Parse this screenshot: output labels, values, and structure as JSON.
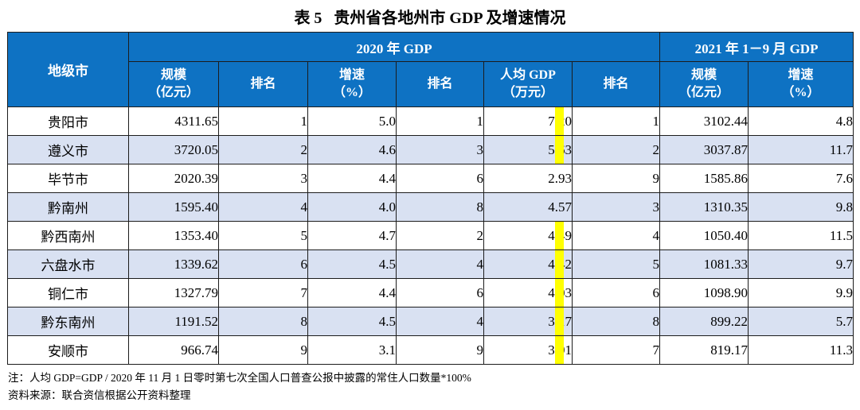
{
  "title": "表 5   贵州省各地州市 GDP 及增速情况",
  "colors": {
    "header_blue": "#0E72C3",
    "alt_row_blue": "#D9E1F2",
    "highlight_yellow": "#FFFF00",
    "border": "#1C1C1C"
  },
  "table": {
    "corner_header": "地级市",
    "groups": [
      {
        "label": "2020 年 GDP",
        "colspan": 6
      },
      {
        "label": "2021 年 1－9 月 GDP",
        "colspan": 2
      }
    ],
    "sub_headers": [
      "规模\n（亿元）",
      "排名",
      "增速\n（%）",
      "排名",
      "人均 GDP\n（万元）",
      "排名",
      "规模\n（亿元）",
      "增速\n（%）"
    ],
    "rows": [
      {
        "city": "贵阳市",
        "gdp_2020": "4311.65",
        "gdp_2020_rank": "1",
        "growth_2020": "5.0",
        "growth_2020_rank": "1",
        "per_capita_gdp": "7.20",
        "per_capita_highlight": true,
        "per_capita_rank": "1",
        "gdp_2021": "3102.44",
        "growth_2021": "4.8",
        "shaded": false
      },
      {
        "city": "遵义市",
        "gdp_2020": "3720.05",
        "gdp_2020_rank": "2",
        "growth_2020": "4.6",
        "growth_2020_rank": "3",
        "per_capita_gdp": "5.63",
        "per_capita_highlight": true,
        "per_capita_rank": "2",
        "gdp_2021": "3037.87",
        "growth_2021": "11.7",
        "shaded": true
      },
      {
        "city": "毕节市",
        "gdp_2020": "2020.39",
        "gdp_2020_rank": "3",
        "growth_2020": "4.4",
        "growth_2020_rank": "6",
        "per_capita_gdp": "2.93",
        "per_capita_highlight": false,
        "per_capita_rank": "9",
        "gdp_2021": "1585.86",
        "growth_2021": "7.6",
        "shaded": false
      },
      {
        "city": "黔南州",
        "gdp_2020": "1595.40",
        "gdp_2020_rank": "4",
        "growth_2020": "4.0",
        "growth_2020_rank": "8",
        "per_capita_gdp": "4.57",
        "per_capita_highlight": false,
        "per_capita_rank": "3",
        "gdp_2021": "1310.35",
        "growth_2021": "9.8",
        "shaded": true
      },
      {
        "city": "黔西南州",
        "gdp_2020": "1353.40",
        "gdp_2020_rank": "5",
        "growth_2020": "4.7",
        "growth_2020_rank": "2",
        "per_capita_gdp": "4.49",
        "per_capita_highlight": true,
        "per_capita_rank": "4",
        "gdp_2021": "1050.40",
        "growth_2021": "11.5",
        "shaded": false
      },
      {
        "city": "六盘水市",
        "gdp_2020": "1339.62",
        "gdp_2020_rank": "6",
        "growth_2020": "4.5",
        "growth_2020_rank": "4",
        "per_capita_gdp": "4.42",
        "per_capita_highlight": true,
        "per_capita_rank": "5",
        "gdp_2021": "1081.33",
        "growth_2021": "9.7",
        "shaded": true
      },
      {
        "city": "铜仁市",
        "gdp_2020": "1327.79",
        "gdp_2020_rank": "7",
        "growth_2020": "4.4",
        "growth_2020_rank": "6",
        "per_capita_gdp": "4.03",
        "per_capita_highlight": true,
        "per_capita_rank": "6",
        "gdp_2021": "1098.90",
        "growth_2021": "9.9",
        "shaded": false
      },
      {
        "city": "黔东南州",
        "gdp_2020": "1191.52",
        "gdp_2020_rank": "8",
        "growth_2020": "4.5",
        "growth_2020_rank": "4",
        "per_capita_gdp": "3.17",
        "per_capita_highlight": true,
        "per_capita_rank": "8",
        "gdp_2021": "899.22",
        "growth_2021": "5.7",
        "shaded": true
      },
      {
        "city": "安顺市",
        "gdp_2020": "966.74",
        "gdp_2020_rank": "9",
        "growth_2020": "3.1",
        "growth_2020_rank": "9",
        "per_capita_gdp": "3.91",
        "per_capita_highlight": true,
        "per_capita_rank": "7",
        "gdp_2021": "819.17",
        "growth_2021": "11.3",
        "shaded": false
      }
    ]
  },
  "footnotes": [
    "注：人均 GDP=GDP / 2020 年 11 月 1 日零时第七次全国人口普查公报中披露的常住人口数量*100%",
    "资料来源：联合资信根据公开资料整理"
  ]
}
